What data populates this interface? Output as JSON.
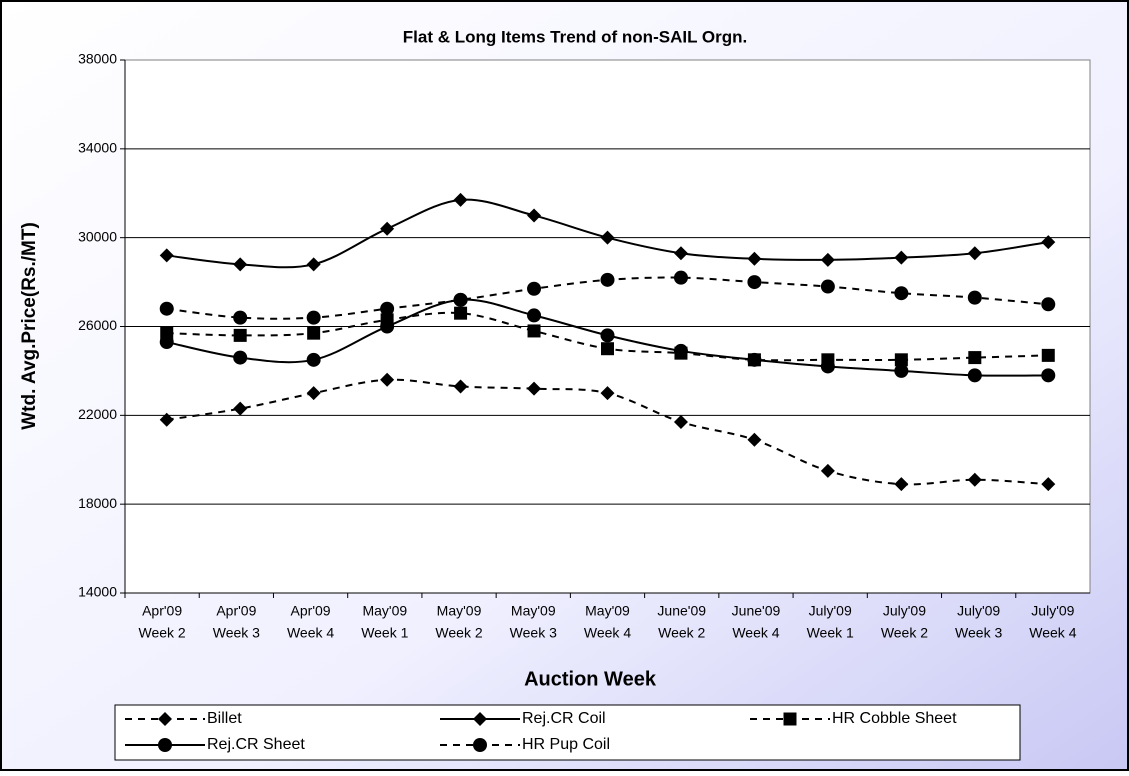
{
  "chart_data": {
    "type": "line",
    "title": "Flat & Long Items Trend of non-SAIL Orgn.",
    "x_label": "Auction Week",
    "y_label": "Wtd. Avg.Price(Rs./MT)",
    "categories": [
      [
        "Apr'09",
        "Week 2"
      ],
      [
        "Apr'09",
        "Week 3"
      ],
      [
        "Apr'09",
        "Week 4"
      ],
      [
        "May'09",
        "Week 1"
      ],
      [
        "May'09",
        "Week 2"
      ],
      [
        "May'09",
        "Week 3"
      ],
      [
        "May'09",
        "Week 4"
      ],
      [
        "June'09",
        "Week 2"
      ],
      [
        "June'09",
        "Week 4"
      ],
      [
        "July'09",
        "Week 1"
      ],
      [
        "July'09",
        "Week 2"
      ],
      [
        "July'09",
        "Week 3"
      ],
      [
        "July'09",
        "Week 4"
      ]
    ],
    "series": [
      {
        "name": "Billet",
        "color": "#000000",
        "dashed": true,
        "marker": "diamond",
        "values": [
          21800,
          22300,
          23000,
          23600,
          23300,
          23200,
          23000,
          21700,
          20900,
          19500,
          18900,
          19100,
          18900
        ]
      },
      {
        "name": "Rej.CR Coil",
        "color": "#000000",
        "dashed": false,
        "marker": "diamond",
        "values": [
          29200,
          28800,
          28800,
          30400,
          31700,
          31000,
          30000,
          29300,
          29050,
          29000,
          29100,
          29300,
          29800
        ]
      },
      {
        "name": "HR Cobble Sheet",
        "color": "#000000",
        "dashed": true,
        "marker": "square",
        "values": [
          25700,
          25600,
          25700,
          26300,
          26600,
          25800,
          25000,
          24800,
          24500,
          24500,
          24500,
          24600,
          24700
        ]
      },
      {
        "name": "Rej.CR Sheet",
        "color": "#000000",
        "dashed": false,
        "marker": "circle",
        "values": [
          25300,
          24600,
          24500,
          26000,
          27200,
          26500,
          25600,
          24900,
          24500,
          24200,
          24000,
          23800,
          23800
        ]
      },
      {
        "name": "HR Pup Coil",
        "color": "#000000",
        "dashed": true,
        "marker": "circle",
        "values": [
          26800,
          26400,
          26400,
          26800,
          27200,
          27700,
          28100,
          28200,
          28000,
          27800,
          27500,
          27300,
          27000
        ]
      }
    ],
    "ylim": [
      14000,
      38000
    ],
    "yticks": [
      14000,
      18000,
      22000,
      26000,
      30000,
      34000,
      38000
    ],
    "grid": true,
    "legend": "bottom"
  }
}
